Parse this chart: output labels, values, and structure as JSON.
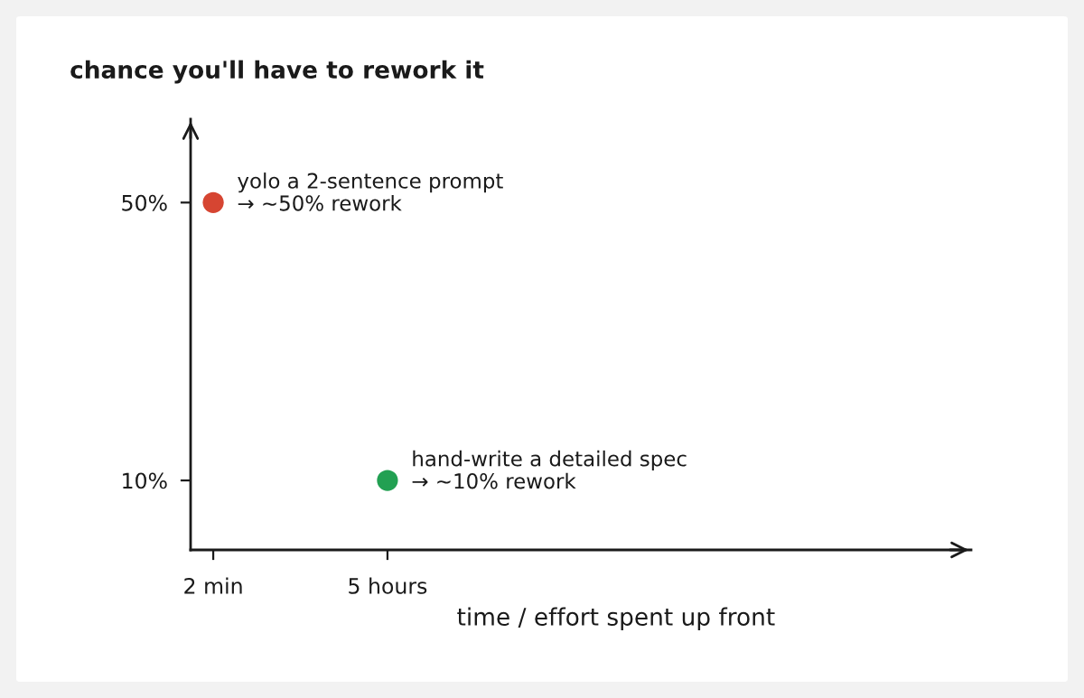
{
  "chart_data": {
    "type": "scatter",
    "ylabel": "chance you'll have to rework it",
    "xlabel": "time / effort spent up front",
    "categories": [
      "2 min",
      "5 hours"
    ],
    "values": [
      50,
      10
    ],
    "colors": [
      "#d64532",
      "#22a052"
    ],
    "marker": "circle",
    "ylim": [
      0,
      62
    ],
    "yticks": [
      {
        "value": 10,
        "label": "10%"
      },
      {
        "value": 50,
        "label": "50%"
      }
    ],
    "annotations": [
      {
        "text": "yolo a 2-sentence prompt\n→ ~50% rework",
        "x": "2 min",
        "y": 50
      },
      {
        "text": "hand-write a detailed spec\n→ ~10% rework",
        "x": "5 hours",
        "y": 10
      }
    ]
  }
}
